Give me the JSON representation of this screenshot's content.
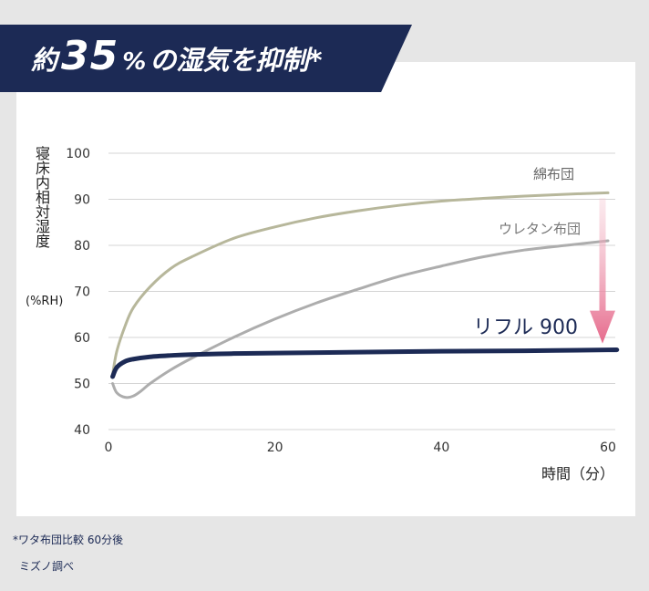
{
  "banner": {
    "prefix": "約",
    "number": "35",
    "percent": "%",
    "suffix": "の湿気を抑制*"
  },
  "chart_data": {
    "type": "line",
    "ylabel": "寝床内相対湿度",
    "ylabel_unit": "(%RH)",
    "xlabel": "時間（分）",
    "xlim": [
      0,
      60
    ],
    "ylim": [
      40,
      100
    ],
    "xticks": [
      0,
      20,
      40,
      60
    ],
    "yticks": [
      40,
      50,
      60,
      70,
      80,
      90,
      100
    ],
    "grid": "horizontal",
    "series": [
      {
        "name": "綿布団",
        "color": "#b7b79b",
        "x": [
          0.5,
          1,
          2,
          3,
          5,
          7.5,
          10,
          15,
          20,
          25,
          30,
          35,
          40,
          45,
          50,
          55,
          60
        ],
        "y": [
          52,
          57,
          62.5,
          66.5,
          71,
          75,
          77.5,
          81.5,
          84,
          86,
          87.5,
          88.7,
          89.6,
          90.2,
          90.7,
          91.1,
          91.4
        ]
      },
      {
        "name": "ウレタン布団",
        "color": "#adadad",
        "x": [
          0.5,
          1,
          2,
          3,
          4,
          5,
          7.5,
          10,
          15,
          20,
          25,
          30,
          35,
          40,
          45,
          50,
          55,
          60
        ],
        "y": [
          50,
          48,
          47,
          47.3,
          48.5,
          50,
          53,
          55.5,
          60,
          64,
          67.5,
          70.5,
          73.3,
          75.5,
          77.5,
          79,
          80,
          81
        ]
      },
      {
        "name": "リフル 900",
        "color": "#1c2a55",
        "x": [
          0.5,
          1,
          2,
          3,
          5,
          7.5,
          10,
          15,
          20,
          30,
          40,
          50,
          60
        ],
        "y": [
          51.5,
          53.5,
          54.8,
          55.3,
          55.8,
          56.1,
          56.3,
          56.5,
          56.6,
          56.8,
          57,
          57.1,
          57.3
        ]
      }
    ]
  },
  "footnote": "*ワタ布団比較 60分後",
  "source": "ミズノ調べ"
}
